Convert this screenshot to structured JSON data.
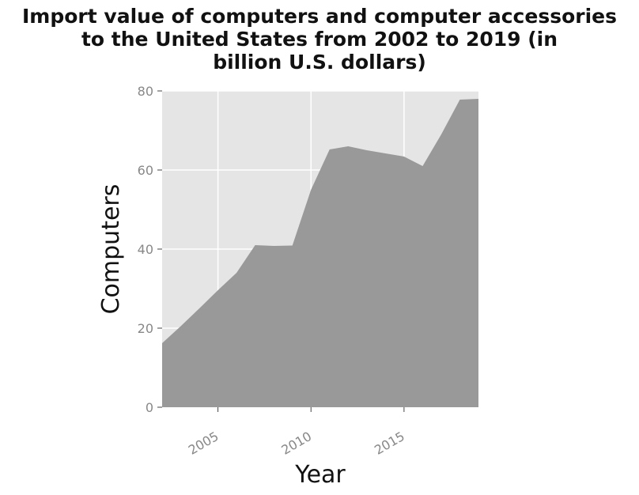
{
  "chart_data": {
    "type": "area",
    "title_lines": [
      "Import value of computers and computer accessories",
      "to the United States from 2002 to 2019 (in",
      "billion U.S. dollars)"
    ],
    "xlabel": "Year",
    "ylabel": "Computers",
    "x": [
      2002,
      2003,
      2004,
      2005,
      2006,
      2007,
      2008,
      2009,
      2010,
      2011,
      2012,
      2013,
      2014,
      2015,
      2016,
      2017,
      2018,
      2019
    ],
    "series": [
      {
        "values": [
          16.2,
          20.5,
          25.0,
          29.6,
          34.0,
          41.0,
          40.8,
          40.9,
          55.0,
          65.2,
          66.0,
          65.0,
          64.2,
          63.4,
          61.0,
          69.0,
          77.8,
          78.0
        ]
      }
    ],
    "xlim": [
      2002,
      2019
    ],
    "ylim": [
      0,
      80
    ],
    "xticks": [
      "2005",
      "2010",
      "2015"
    ],
    "yticks": [
      "0",
      "20",
      "40",
      "60",
      "80"
    ],
    "grid": true,
    "legend": "none",
    "colors": {
      "fill": "#999999",
      "plot_background": "#e5e5e5",
      "grid": "#ffffff",
      "tick_text": "#888888"
    }
  }
}
